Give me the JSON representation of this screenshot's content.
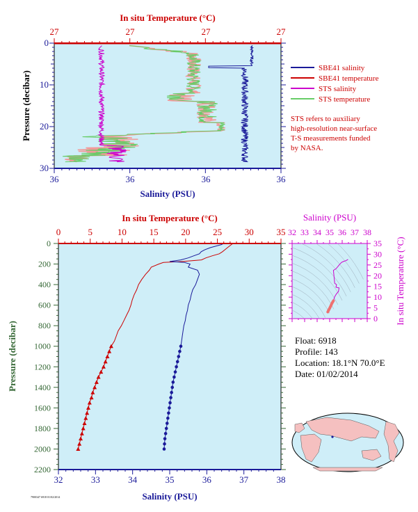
{
  "colors": {
    "plot_bg": "#cfeef8",
    "sbe41_salinity": "#1a1a99",
    "sbe41_temperature": "#cc0000",
    "sts_salinity": "#cc00cc",
    "sts_temperature": "#66cc66",
    "sts_temperature_light": "#f19a9a",
    "axis_pressure": "#336633",
    "axis_temperature": "#cc0000",
    "axis_salinity": "#1a1a99",
    "axis_ts": "#cc00cc"
  },
  "top_panel": {
    "temp_axis_title": "In situ Temperature (°C)",
    "temp_ticks": [
      "27",
      "27",
      "27",
      "27"
    ],
    "sal_axis_title": "Salinity (PSU)",
    "sal_ticks": [
      "36",
      "36",
      "36",
      "36"
    ],
    "pressure_axis_title": "Pressure (decibar)",
    "pressure_ticks": [
      "0",
      "10",
      "20",
      "30"
    ],
    "legend": [
      {
        "label": "SBE41 salinity",
        "color": "#1a1a99"
      },
      {
        "label": "SBE41 temperature",
        "color": "#cc0000"
      },
      {
        "label": "STS salinity",
        "color": "#cc00cc"
      },
      {
        "label": "STS temperature",
        "color": "#66cc66"
      }
    ],
    "note_lines": [
      "STS refers to auxiliary",
      "high-resolution near-surface",
      "T-S measurements funded",
      "by NASA."
    ]
  },
  "main_panel": {
    "temp_axis_title": "In situ Temperature (°C)",
    "temp_ticks": [
      "0",
      "5",
      "10",
      "15",
      "20",
      "25",
      "30",
      "35"
    ],
    "sal_axis_title": "Salinity (PSU)",
    "sal_ticks": [
      "32",
      "33",
      "34",
      "35",
      "36",
      "37",
      "38"
    ],
    "pressure_axis_title": "Pressure (decibar)",
    "pressure_ticks": [
      "0",
      "200",
      "400",
      "600",
      "800",
      "1000",
      "1200",
      "1400",
      "1600",
      "1800",
      "2000",
      "2200"
    ]
  },
  "ts_panel": {
    "sal_axis_title": "Salinity (PSU)",
    "sal_ticks": [
      "32",
      "33",
      "34",
      "35",
      "36",
      "37",
      "38"
    ],
    "temp_axis_title": "In situ Temperature (°C)",
    "temp_ticks": [
      "0",
      "5",
      "10",
      "15",
      "20",
      "25",
      "30",
      "35"
    ]
  },
  "info": {
    "float": "Float: 6918",
    "profile": "Profile: 143",
    "location": "Location: 18.1°N 70.0°E",
    "date": "Date: 01/02/2014"
  },
  "footer_stamp": "7900347 6918 01/02/2014",
  "chart_data": [
    {
      "type": "line",
      "name": "main-profile",
      "xlabel_bottom": "Salinity (PSU)",
      "xlabel_top": "In situ Temperature (°C)",
      "ylabel": "Pressure (decibar)",
      "salinity_lim": [
        32,
        38
      ],
      "temperature_lim": [
        0,
        35
      ],
      "pressure_lim": [
        0,
        2200
      ],
      "pressure_inverted": true,
      "grid": false,
      "series": [
        {
          "name": "SBE41 temperature",
          "color": "#cc0000",
          "pressure": [
            0,
            10,
            20,
            40,
            60,
            80,
            100,
            120,
            140,
            160,
            175,
            185,
            200,
            230,
            260,
            300,
            350,
            400,
            450,
            500,
            550,
            600,
            650,
            700,
            750,
            800,
            850,
            900,
            950,
            1000
          ],
          "temperature": [
            27.5,
            27.2,
            27.0,
            26.6,
            26.2,
            25.8,
            25.3,
            24.2,
            23.2,
            22.5,
            19.5,
            16.5,
            15.8,
            14.6,
            14.3,
            13.7,
            13.1,
            12.6,
            12.3,
            11.9,
            11.6,
            11.4,
            11.1,
            10.7,
            10.3,
            9.9,
            9.4,
            9.1,
            8.8,
            8.3
          ]
        },
        {
          "name": "SBE41 temperature deep",
          "color": "#cc0000",
          "marker": "triangle",
          "pressure": [
            1000,
            1050,
            1100,
            1150,
            1200,
            1250,
            1300,
            1350,
            1400,
            1450,
            1500,
            1550,
            1600,
            1650,
            1700,
            1750,
            1800,
            1850,
            1900,
            1950,
            2000
          ],
          "temperature": [
            8.3,
            8.0,
            7.7,
            7.4,
            7.1,
            6.7,
            6.3,
            6.0,
            5.7,
            5.4,
            5.2,
            4.9,
            4.7,
            4.5,
            4.3,
            4.1,
            3.9,
            3.7,
            3.5,
            3.3,
            3.1
          ]
        },
        {
          "name": "SBE41 salinity",
          "color": "#1a1a99",
          "pressure": [
            0,
            10,
            20,
            40,
            60,
            80,
            100,
            120,
            140,
            160,
            175,
            185,
            200,
            230,
            260,
            300,
            350,
            400,
            450,
            500,
            550,
            600,
            650,
            700,
            750,
            800,
            850,
            900,
            950,
            1000
          ],
          "salinity": [
            36.45,
            36.4,
            36.3,
            36.1,
            35.95,
            35.85,
            35.8,
            35.65,
            35.5,
            35.3,
            35.0,
            35.4,
            35.55,
            35.5,
            35.75,
            35.8,
            35.75,
            35.7,
            35.62,
            35.58,
            35.55,
            35.5,
            35.48,
            35.44,
            35.42,
            35.38,
            35.36,
            35.34,
            35.32,
            35.3
          ]
        },
        {
          "name": "SBE41 salinity deep",
          "color": "#1a1a99",
          "marker": "circle",
          "pressure": [
            1000,
            1050,
            1100,
            1150,
            1200,
            1250,
            1300,
            1350,
            1400,
            1450,
            1500,
            1550,
            1600,
            1650,
            1700,
            1750,
            1800,
            1850,
            1900,
            1950,
            2000
          ],
          "salinity": [
            35.3,
            35.27,
            35.24,
            35.21,
            35.18,
            35.15,
            35.12,
            35.09,
            35.07,
            35.05,
            35.03,
            35.01,
            34.99,
            34.97,
            34.95,
            34.93,
            34.91,
            34.89,
            34.87,
            34.86,
            34.85
          ]
        }
      ]
    },
    {
      "type": "line",
      "name": "ts-diagram",
      "xlabel": "Salinity (PSU)",
      "ylabel": "In situ Temperature (°C)",
      "xlim": [
        32,
        38
      ],
      "ylim": [
        0,
        35
      ],
      "series": [
        {
          "name": "T-S",
          "color": "#cc00cc",
          "salinity": [
            36.45,
            36.3,
            36.1,
            35.95,
            35.8,
            35.65,
            35.5,
            35.3,
            35.4,
            35.55,
            35.5,
            35.75,
            35.7,
            35.55,
            35.45,
            35.38,
            35.3
          ],
          "temperature": [
            27.5,
            27.0,
            26.6,
            26.2,
            25.3,
            24.2,
            23.2,
            22.5,
            16.5,
            15.8,
            14.6,
            14.3,
            12.6,
            11.6,
            10.7,
            9.9,
            8.3
          ]
        },
        {
          "name": "T-S deep",
          "color": "#ee7070",
          "salinity": [
            35.3,
            35.18,
            35.07,
            34.99,
            34.91,
            34.85
          ],
          "temperature": [
            8.3,
            7.1,
            5.7,
            4.7,
            3.9,
            3.1
          ]
        }
      ]
    }
  ]
}
